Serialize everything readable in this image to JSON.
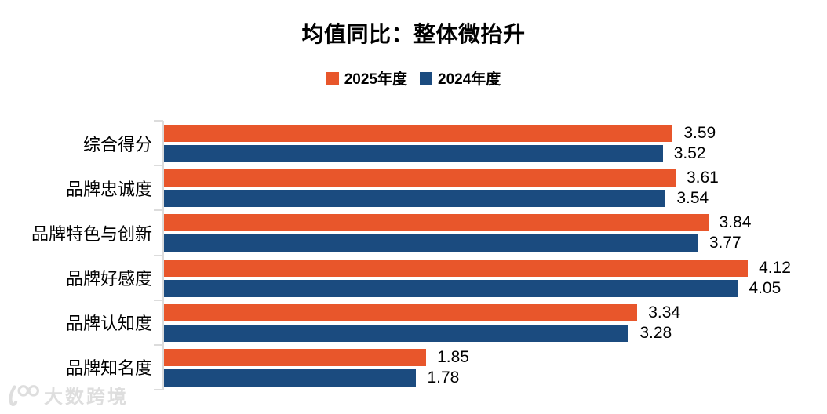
{
  "chart_data": {
    "type": "bar",
    "orientation": "horizontal",
    "title": "均值同比：整体微抬升",
    "categories": [
      "综合得分",
      "品牌忠诚度",
      "品牌特色与创新",
      "品牌好感度",
      "品牌认知度",
      "品牌知名度"
    ],
    "series": [
      {
        "name": "2025年度",
        "color": "#E8562B",
        "values": [
          3.59,
          3.61,
          3.84,
          4.12,
          3.34,
          1.85
        ]
      },
      {
        "name": "2024年度",
        "color": "#1B4B7F",
        "values": [
          3.52,
          3.54,
          3.77,
          4.05,
          3.28,
          1.78
        ]
      }
    ],
    "xlim": [
      0,
      4.68
    ],
    "xlabel": "",
    "ylabel": "",
    "grid": false,
    "value_labels": true,
    "value_label_format": "0.00",
    "legend_position": "top",
    "axis_color": "#DCDCDC"
  },
  "watermark": {
    "logo": "100-logo",
    "text": "大数跨境"
  }
}
